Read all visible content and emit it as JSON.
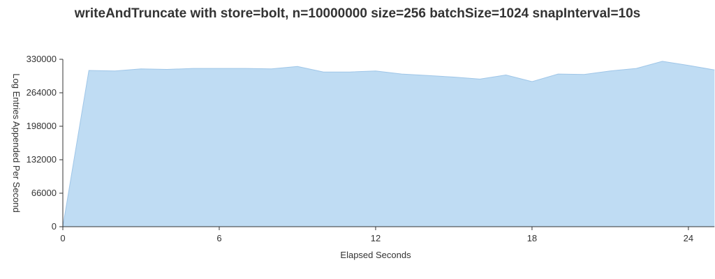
{
  "chart_data": {
    "type": "area",
    "title": "writeAndTruncate with store=bolt, n=10000000 size=256 batchSize=1024 snapInterval=10s",
    "xlabel": "Elapsed Seconds",
    "ylabel": "Log Entries Appended Per Second",
    "xlim": [
      0,
      25
    ],
    "ylim": [
      0,
      330000
    ],
    "x_ticks": [
      0,
      6,
      12,
      18,
      24
    ],
    "y_ticks": [
      0,
      66000,
      132000,
      198000,
      264000,
      330000
    ],
    "grid": false,
    "colors": {
      "fill": "#bfdcf3",
      "stroke": "#9fc6e8",
      "axis": "#333333"
    },
    "series": [
      {
        "x": [
          0,
          1,
          2,
          3,
          4,
          5,
          6,
          7,
          8,
          9,
          10,
          11,
          12,
          13,
          14,
          15,
          16,
          17,
          18,
          19,
          20,
          21,
          22,
          23,
          24,
          25
        ],
        "values": [
          0,
          308000,
          307000,
          311000,
          310000,
          312000,
          312000,
          312000,
          311000,
          316000,
          305000,
          305000,
          307000,
          301000,
          298000,
          295000,
          291000,
          299000,
          286000,
          301000,
          300000,
          307000,
          312000,
          326000,
          318000,
          309000
        ]
      }
    ]
  }
}
